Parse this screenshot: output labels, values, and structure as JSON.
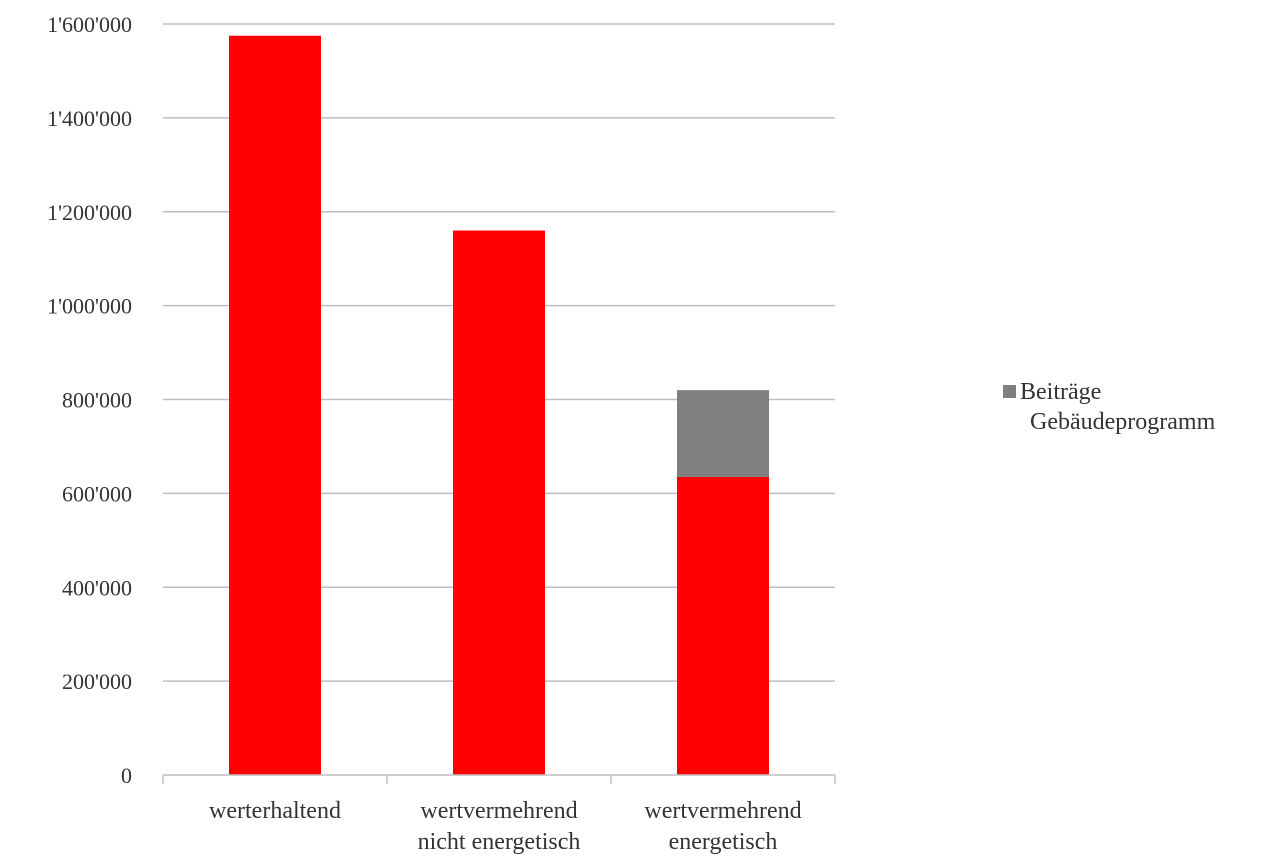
{
  "chart_data": {
    "type": "bar",
    "stacked": true,
    "title": "",
    "xlabel": "",
    "ylabel": "",
    "ylim": [
      0,
      1600000
    ],
    "y_ticks": [
      0,
      200000,
      400000,
      600000,
      800000,
      1000000,
      1200000,
      1400000,
      1600000
    ],
    "y_tick_labels": [
      "0",
      "200'000",
      "400'000",
      "600'000",
      "800'000",
      "1'000'000",
      "1'200'000",
      "1'400'000",
      "1'600'000"
    ],
    "grid": true,
    "legend_position": "right",
    "categories": [
      [
        "werterhaltend"
      ],
      [
        "wertvermehrend",
        "nicht energetisch"
      ],
      [
        "wertvermehrend",
        "energetisch"
      ]
    ],
    "series": [
      {
        "values": [
          1575000,
          1160000,
          635000
        ],
        "color": "#ff0000",
        "in_legend": false
      },
      {
        "name": [
          "Beiträge",
          "Gebäudeprogramm"
        ],
        "values": [
          0,
          0,
          185000
        ],
        "color": "#7f7f7f",
        "in_legend": true
      }
    ]
  },
  "colors": {
    "grid": "#bfbfbf",
    "axis": "#bfbfbf",
    "text": "#333333"
  }
}
